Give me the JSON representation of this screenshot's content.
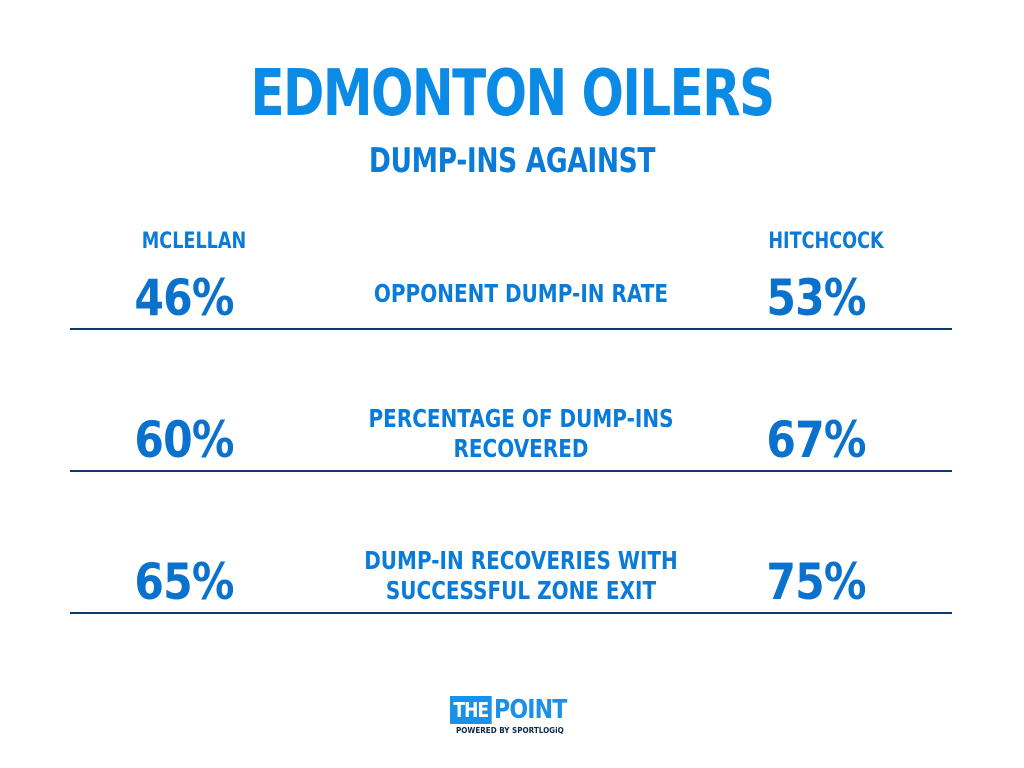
{
  "colors": {
    "accent": "#0a7bd8",
    "title": "#0b8ae6",
    "text": "#0a72cc",
    "rule": "#0a3a6e",
    "logo_dark": "#0a2a4a",
    "logo_blue": "#1a90e8"
  },
  "chart_data": {
    "type": "table",
    "title": "EDMONTON OILERS",
    "subtitle": "DUMP-INS AGAINST",
    "columns": [
      "MCLELLAN",
      "HITCHCOCK"
    ],
    "rows": [
      {
        "metric_lines": [
          "OPPONENT DUMP-IN RATE"
        ],
        "values": [
          "46%",
          "53%"
        ]
      },
      {
        "metric_lines": [
          "PERCENTAGE OF DUMP-INS",
          "RECOVERED"
        ],
        "values": [
          "60%",
          "67%"
        ]
      },
      {
        "metric_lines": [
          "DUMP-IN RECOVERIES WITH",
          "SUCCESSFUL ZONE EXIT"
        ],
        "values": [
          "65%",
          "75%"
        ]
      }
    ]
  },
  "logo": {
    "the": "THE",
    "point": "POINT",
    "powered_by": "POWERED BY SPORTLOGiQ"
  }
}
